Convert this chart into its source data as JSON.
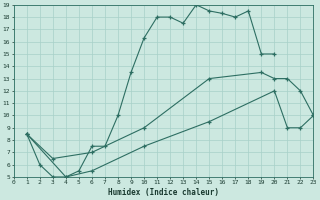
{
  "xlabel": "Humidex (Indice chaleur)",
  "xlim": [
    0,
    23
  ],
  "ylim": [
    5,
    19
  ],
  "xticks": [
    0,
    1,
    2,
    3,
    4,
    5,
    6,
    7,
    8,
    9,
    10,
    11,
    12,
    13,
    14,
    15,
    16,
    17,
    18,
    19,
    20,
    21,
    22,
    23
  ],
  "yticks": [
    5,
    6,
    7,
    8,
    9,
    10,
    11,
    12,
    13,
    14,
    15,
    16,
    17,
    18,
    19
  ],
  "bg_color": "#cce8e0",
  "grid_color": "#a8d0c8",
  "line_color": "#2d6e62",
  "line1_x": [
    1,
    2,
    3,
    4,
    5,
    6,
    7,
    8,
    9,
    10,
    11,
    12,
    13,
    14,
    15,
    16,
    17,
    18,
    19,
    20
  ],
  "line1_y": [
    8.5,
    6.0,
    5.0,
    5.0,
    5.5,
    7.5,
    7.5,
    10.0,
    13.5,
    16.3,
    18.0,
    18.0,
    17.5,
    19.0,
    18.5,
    18.3,
    18.0,
    18.5,
    15.0,
    15.0
  ],
  "line2_x": [
    1,
    3,
    6,
    10,
    15,
    19,
    20,
    21,
    22,
    23
  ],
  "line2_y": [
    8.5,
    6.5,
    7.0,
    9.0,
    13.0,
    13.5,
    13.0,
    13.0,
    12.0,
    10.0
  ],
  "line3_x": [
    1,
    4,
    6,
    10,
    15,
    20,
    21,
    22,
    23
  ],
  "line3_y": [
    8.5,
    5.0,
    5.5,
    7.5,
    9.5,
    12.0,
    9.0,
    9.0,
    10.0
  ]
}
